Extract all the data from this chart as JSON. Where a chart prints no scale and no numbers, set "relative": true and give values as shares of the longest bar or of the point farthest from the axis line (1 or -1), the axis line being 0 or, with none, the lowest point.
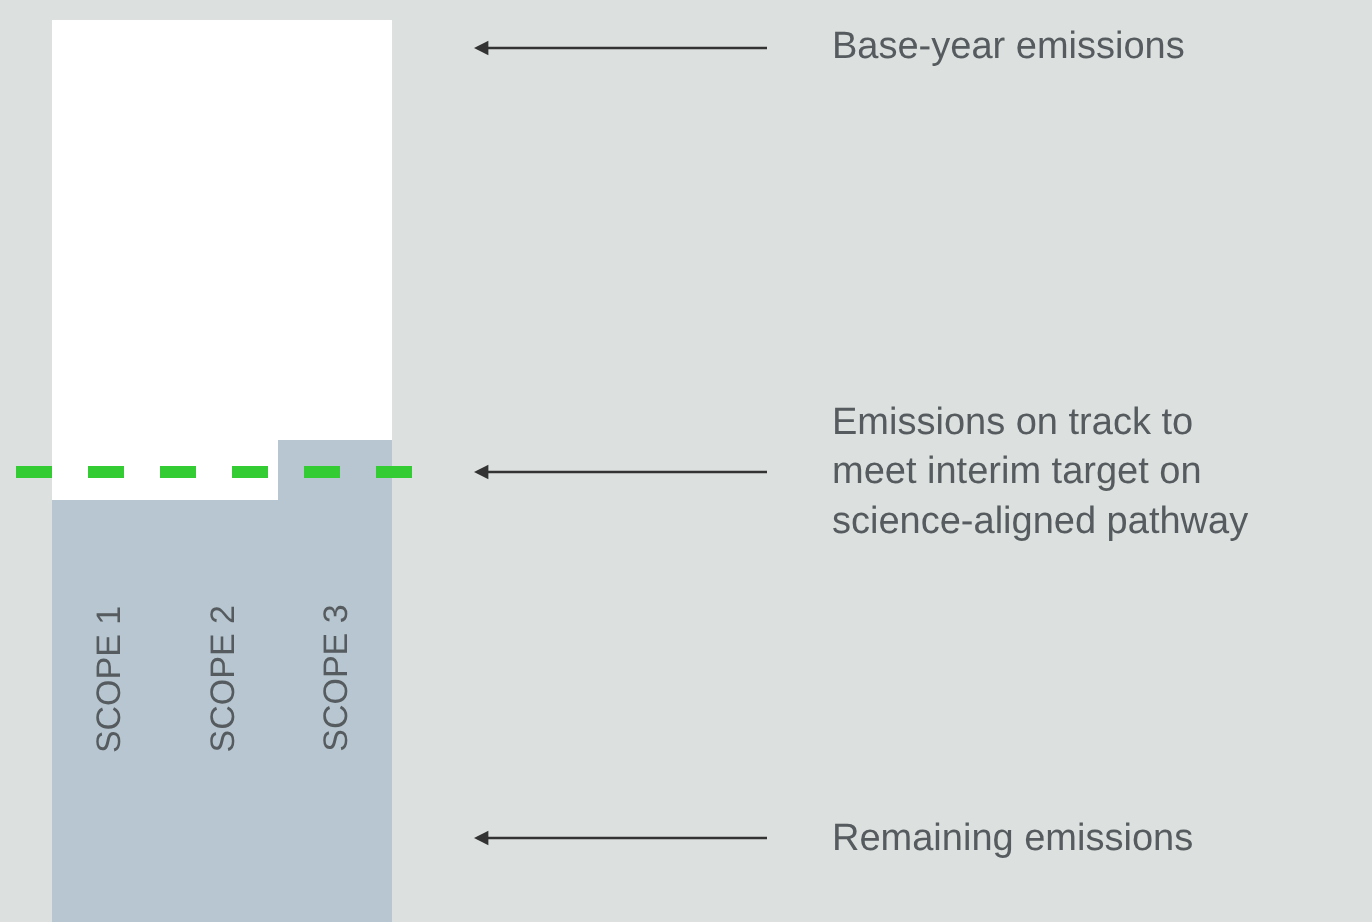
{
  "chart_data": {
    "type": "bar",
    "stacked": true,
    "relative": true,
    "tick_labels": false,
    "categories": [
      "SCOPE 1",
      "SCOPE 2",
      "SCOPE 3"
    ],
    "series": [
      {
        "color": "#b7c6d0",
        "values": [
          0.468,
          0.468,
          0.534
        ]
      },
      {
        "color": "#ffffff",
        "values": [
          0.532,
          0.532,
          0.466
        ]
      }
    ],
    "ref_lines": [
      {
        "axis": "y",
        "value": 0.499,
        "color": "#33cc33",
        "line_style": "dashed"
      }
    ],
    "annotations": [
      "Base-year emissions",
      "Emissions on track to\nmeet interim target on\nscience-aligned pathway",
      "Remaining emissions"
    ]
  }
}
